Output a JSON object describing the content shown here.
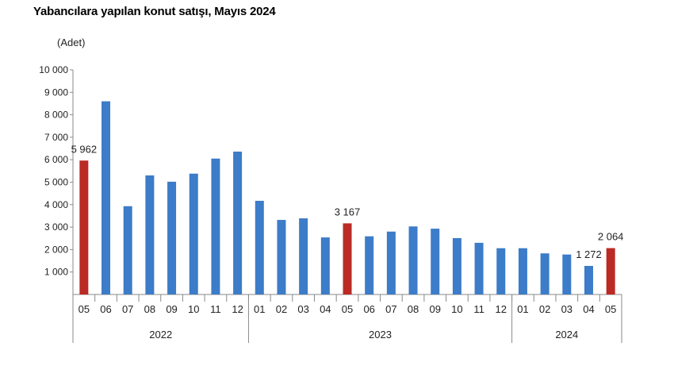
{
  "chart_data": {
    "type": "bar",
    "title": "Yabancılara yapılan konut satışı, Mayıs 2024",
    "ylabel": "(Adet)",
    "ylim": [
      0,
      10000
    ],
    "yticks": [
      "1 000",
      "2 000",
      "3 000",
      "4 000",
      "5 000",
      "6 000",
      "7 000",
      "8 000",
      "9 000",
      "10 000"
    ],
    "categories": [
      "05",
      "06",
      "07",
      "08",
      "09",
      "10",
      "11",
      "12",
      "01",
      "02",
      "03",
      "04",
      "05",
      "06",
      "07",
      "08",
      "09",
      "10",
      "11",
      "12",
      "01",
      "02",
      "03",
      "04",
      "05"
    ],
    "years": [
      {
        "label": "2022",
        "count": 8
      },
      {
        "label": "2023",
        "count": 12
      },
      {
        "label": "2024",
        "count": 5
      }
    ],
    "values": [
      5962,
      8600,
      3930,
      5300,
      5020,
      5380,
      6050,
      6360,
      4170,
      3320,
      3390,
      2540,
      3167,
      2590,
      2800,
      3030,
      2930,
      2510,
      2300,
      2060,
      2060,
      1830,
      1780,
      1272,
      2064
    ],
    "highlight": [
      0,
      12,
      24
    ],
    "data_labels": {
      "0": "5 962",
      "12": "3 167",
      "23": "1 272",
      "24": "2 064"
    },
    "colors": {
      "bar": "#3c7cc8",
      "highlight": "#bb2a24",
      "axis": "#8a8a8a"
    },
    "grid": false
  }
}
